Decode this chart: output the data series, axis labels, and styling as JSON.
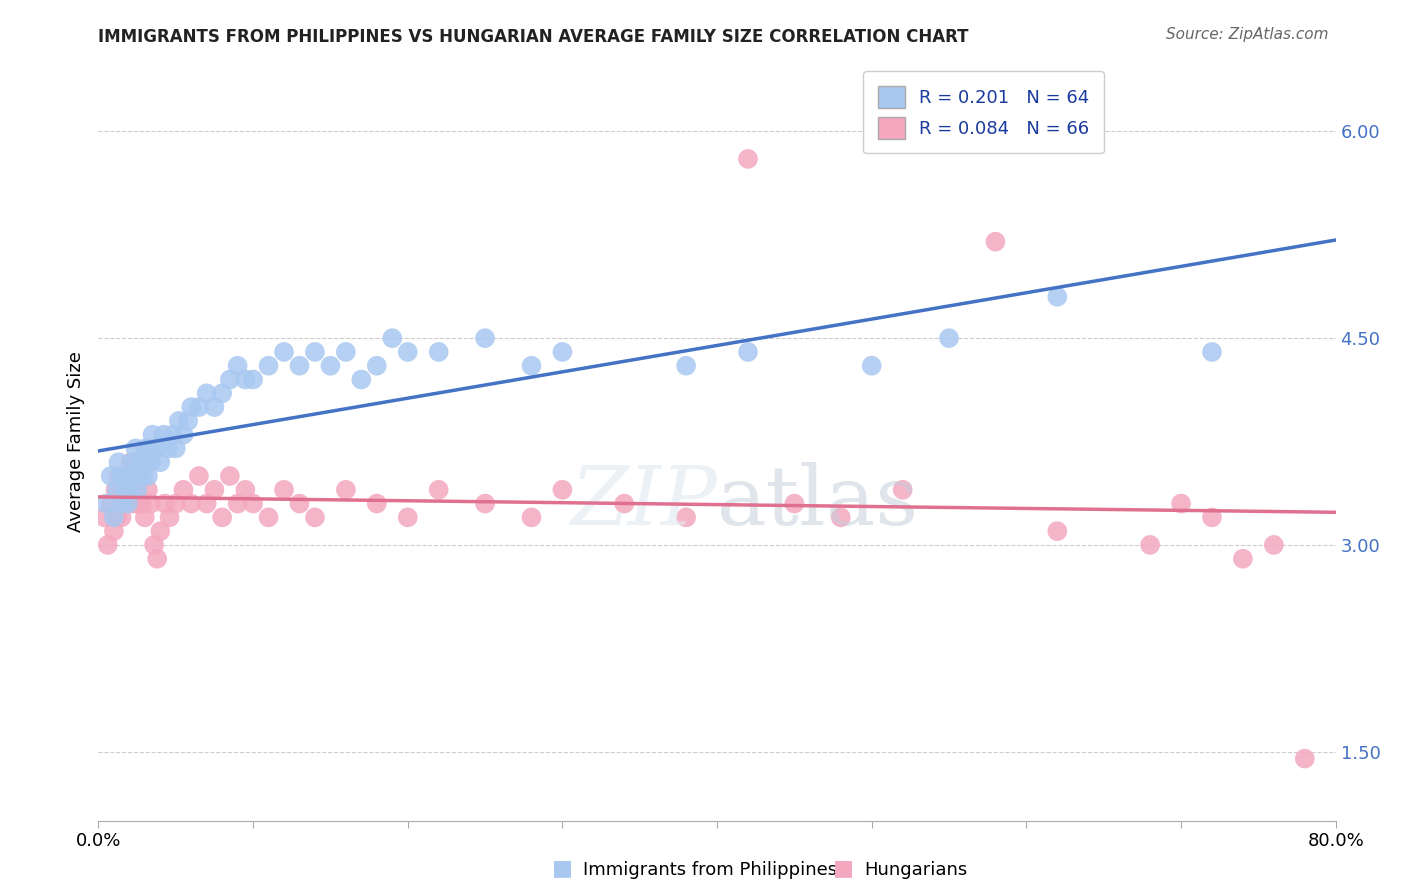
{
  "title": "IMMIGRANTS FROM PHILIPPINES VS HUNGARIAN AVERAGE FAMILY SIZE CORRELATION CHART",
  "source": "Source: ZipAtlas.com",
  "ylabel": "Average Family Size",
  "legend_labels": [
    "Immigrants from Philippines",
    "Hungarians"
  ],
  "r_values": [
    0.201,
    0.084
  ],
  "n_values": [
    64,
    66
  ],
  "blue_color": "#A8C8F0",
  "pink_color": "#F4A8C0",
  "line_blue": "#4472C4",
  "line_pink": "#E07090",
  "yticks_right": [
    1.5,
    3.0,
    4.5,
    6.0
  ],
  "xlim": [
    0.0,
    0.8
  ],
  "ylim": [
    1.0,
    6.5
  ],
  "blue_x": [
    0.005,
    0.008,
    0.01,
    0.012,
    0.013,
    0.015,
    0.015,
    0.017,
    0.018,
    0.019,
    0.02,
    0.021,
    0.022,
    0.023,
    0.024,
    0.025,
    0.026,
    0.027,
    0.028,
    0.029,
    0.03,
    0.031,
    0.032,
    0.033,
    0.034,
    0.035,
    0.038,
    0.04,
    0.042,
    0.045,
    0.048,
    0.05,
    0.052,
    0.055,
    0.058,
    0.06,
    0.065,
    0.07,
    0.075,
    0.08,
    0.085,
    0.09,
    0.095,
    0.1,
    0.11,
    0.12,
    0.13,
    0.14,
    0.15,
    0.16,
    0.17,
    0.18,
    0.19,
    0.2,
    0.22,
    0.25,
    0.28,
    0.3,
    0.38,
    0.42,
    0.5,
    0.55,
    0.62,
    0.72
  ],
  "blue_y": [
    3.3,
    3.5,
    3.2,
    3.4,
    3.6,
    3.3,
    3.5,
    3.4,
    3.5,
    3.3,
    3.5,
    3.4,
    3.6,
    3.5,
    3.7,
    3.4,
    3.6,
    3.5,
    3.6,
    3.5,
    3.7,
    3.6,
    3.5,
    3.7,
    3.6,
    3.8,
    3.7,
    3.6,
    3.8,
    3.7,
    3.8,
    3.7,
    3.9,
    3.8,
    3.9,
    4.0,
    4.0,
    4.1,
    4.0,
    4.1,
    4.2,
    4.3,
    4.2,
    4.2,
    4.3,
    4.4,
    4.3,
    4.4,
    4.3,
    4.4,
    4.2,
    4.3,
    4.5,
    4.4,
    4.4,
    4.5,
    4.3,
    4.4,
    4.3,
    4.4,
    4.3,
    4.5,
    4.8,
    4.4
  ],
  "pink_x": [
    0.004,
    0.006,
    0.008,
    0.01,
    0.011,
    0.012,
    0.013,
    0.014,
    0.015,
    0.016,
    0.017,
    0.018,
    0.019,
    0.02,
    0.021,
    0.022,
    0.023,
    0.024,
    0.025,
    0.026,
    0.027,
    0.028,
    0.03,
    0.032,
    0.034,
    0.036,
    0.038,
    0.04,
    0.043,
    0.046,
    0.05,
    0.055,
    0.06,
    0.065,
    0.07,
    0.075,
    0.08,
    0.085,
    0.09,
    0.095,
    0.1,
    0.11,
    0.12,
    0.13,
    0.14,
    0.16,
    0.18,
    0.2,
    0.22,
    0.25,
    0.28,
    0.3,
    0.34,
    0.38,
    0.42,
    0.45,
    0.48,
    0.52,
    0.58,
    0.62,
    0.68,
    0.7,
    0.72,
    0.74,
    0.76,
    0.78
  ],
  "pink_y": [
    3.2,
    3.0,
    3.3,
    3.1,
    3.4,
    3.2,
    3.5,
    3.3,
    3.2,
    3.4,
    3.3,
    3.5,
    3.4,
    3.3,
    3.6,
    3.4,
    3.3,
    3.5,
    3.4,
    3.3,
    3.5,
    3.3,
    3.2,
    3.4,
    3.3,
    3.0,
    2.9,
    3.1,
    3.3,
    3.2,
    3.3,
    3.4,
    3.3,
    3.5,
    3.3,
    3.4,
    3.2,
    3.5,
    3.3,
    3.4,
    3.3,
    3.2,
    3.4,
    3.3,
    3.2,
    3.4,
    3.3,
    3.2,
    3.4,
    3.3,
    3.2,
    3.4,
    3.3,
    3.2,
    5.8,
    3.3,
    3.2,
    3.4,
    5.2,
    3.1,
    3.0,
    3.3,
    3.2,
    2.9,
    3.0,
    1.45
  ]
}
